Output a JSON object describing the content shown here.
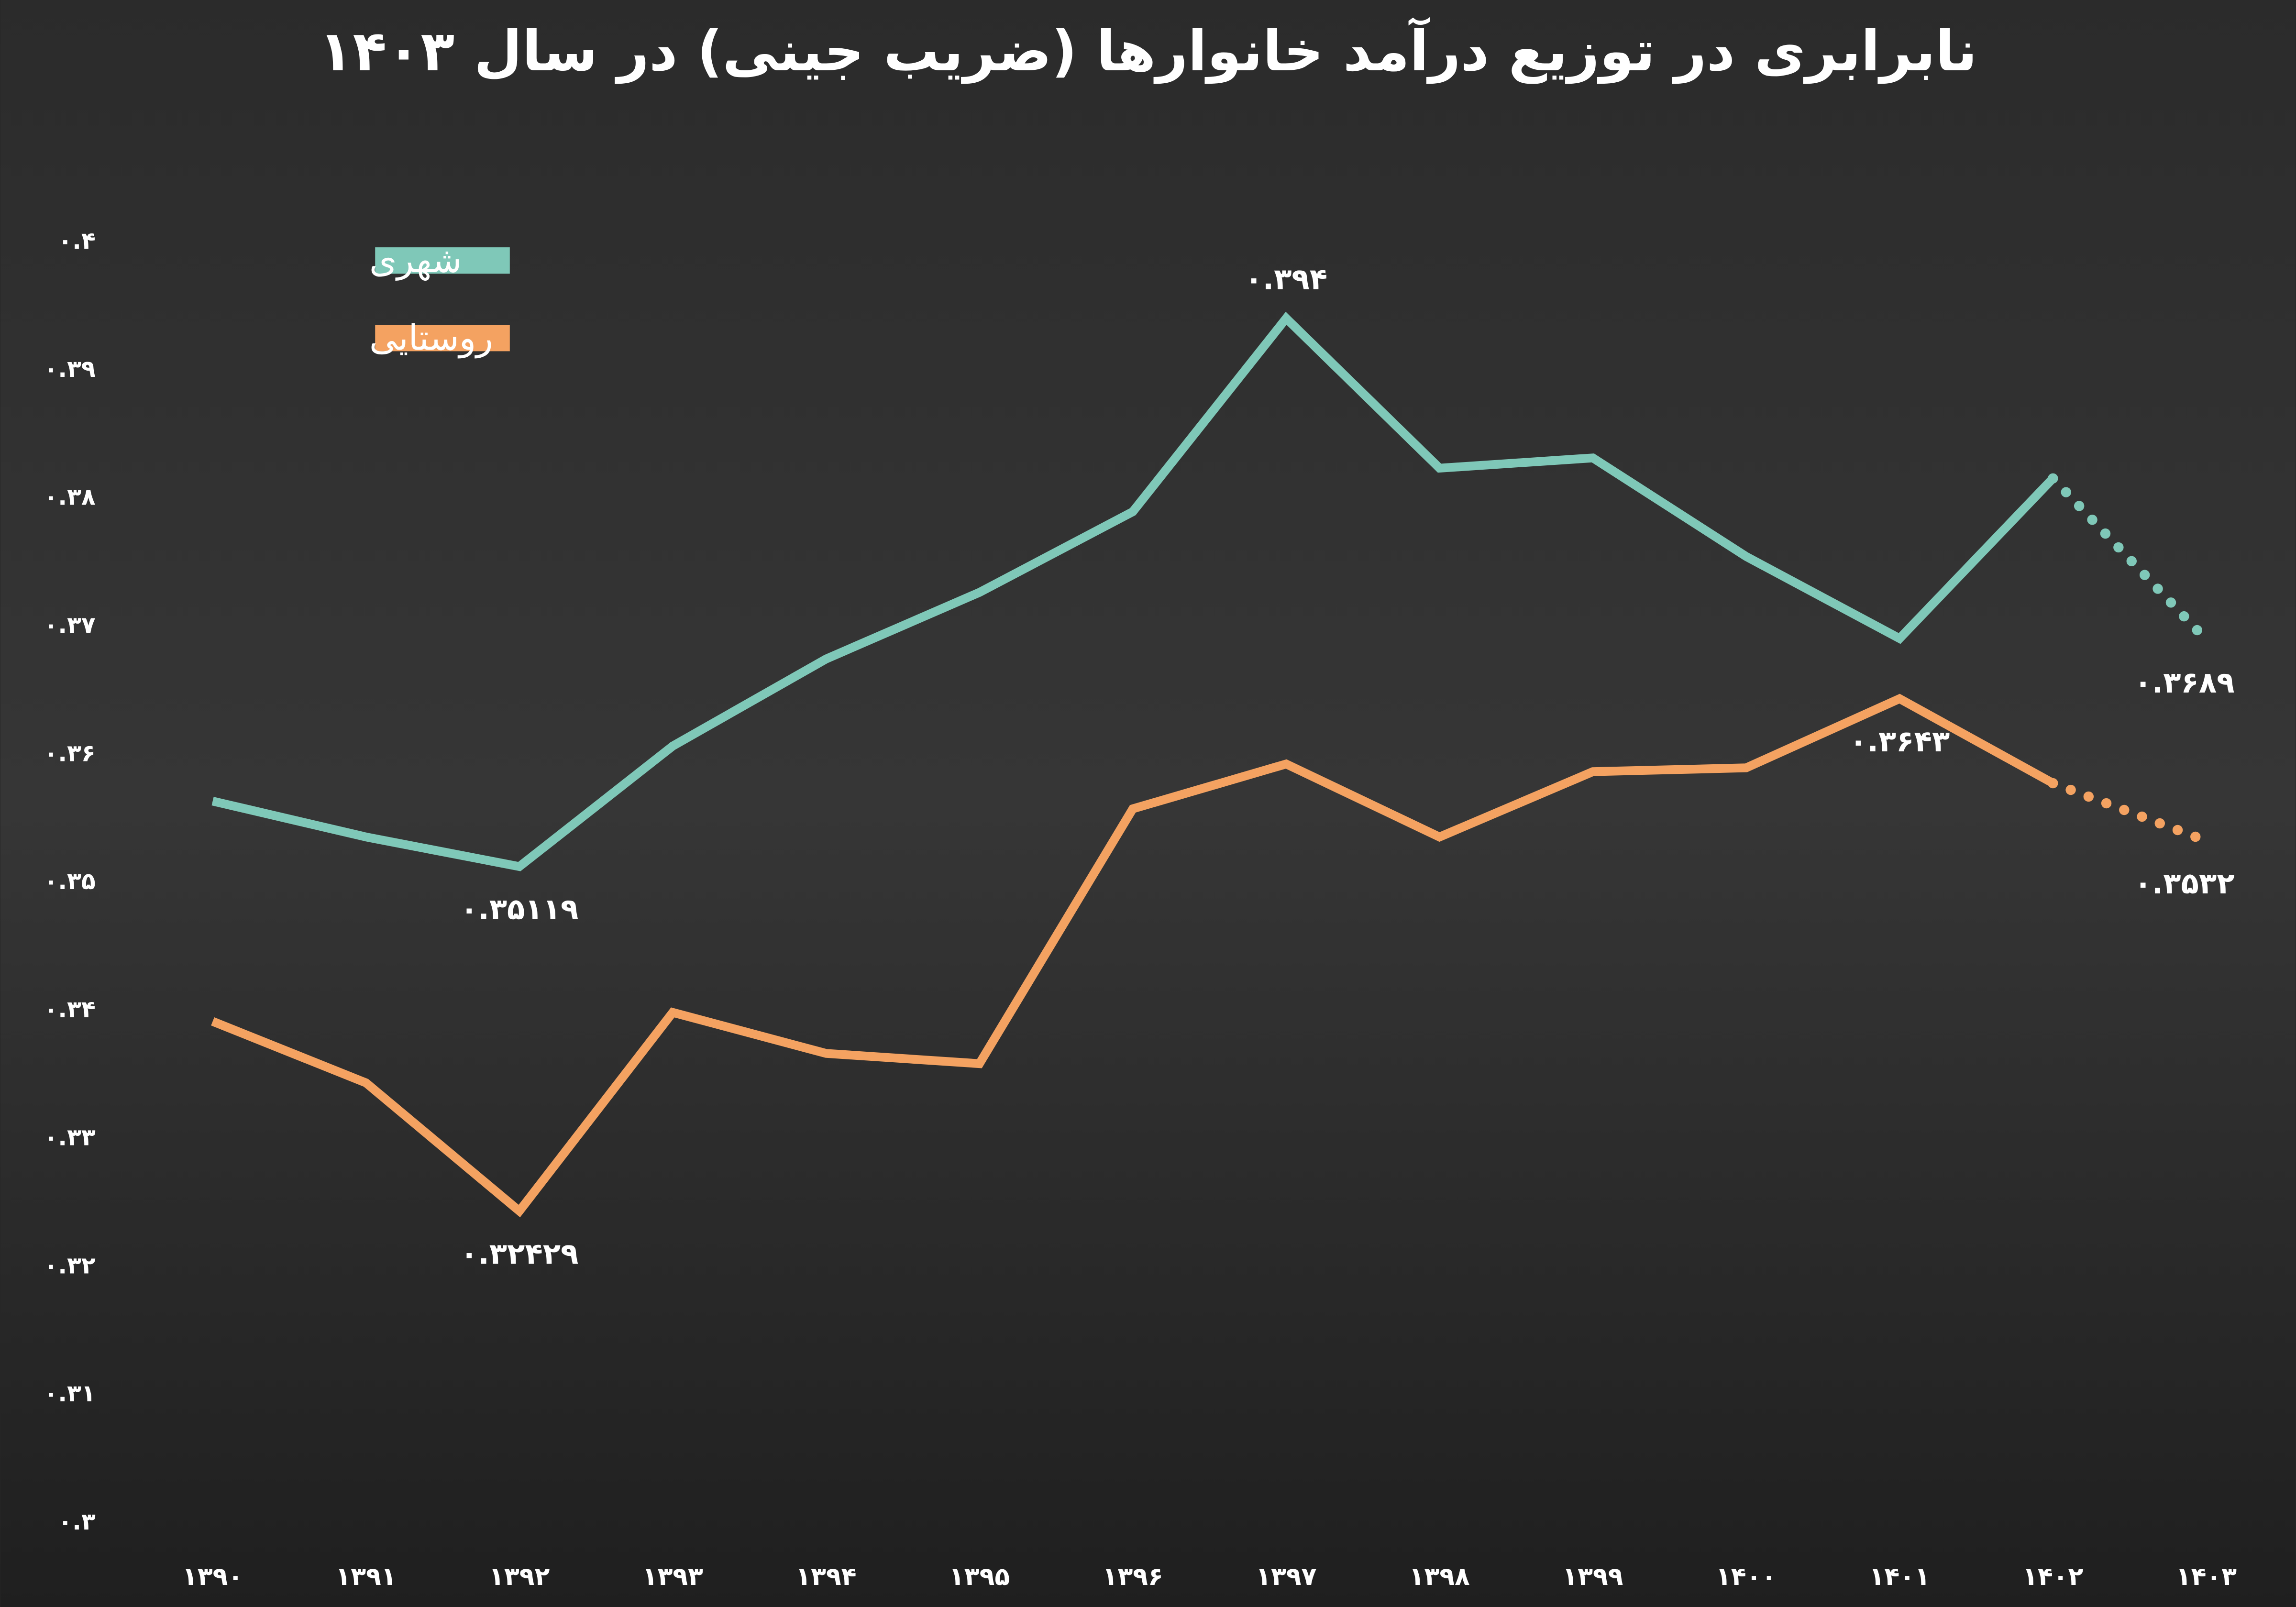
{
  "chart_data": {
    "type": "line",
    "title": "نابرابری در توزیع درآمد خانوارها (ضریب جینی) در سال ۱۴۰۳",
    "categories": [
      "۱۳۹۰",
      "۱۳۹۱",
      "۱۳۹۲",
      "۱۳۹۳",
      "۱۳۹۴",
      "۱۳۹۵",
      "۱۳۹۶",
      "۱۳۹۷",
      "۱۳۹۸",
      "۱۳۹۹",
      "۱۴۰۰",
      "۱۴۰۱",
      "۱۴۰۲",
      "۱۴۰۳"
    ],
    "series": [
      {
        "name": "شهری",
        "color": "#7fc8b8",
        "last_segment_style": "dotted",
        "values": [
          0.3563,
          0.3535,
          0.35119,
          0.3606,
          0.3674,
          0.3726,
          0.3789,
          0.394,
          0.3823,
          0.3831,
          0.3754,
          0.369,
          0.3815,
          0.3689
        ],
        "value_labels": [
          null,
          null,
          "۰.۳۵۱۱۹",
          null,
          null,
          null,
          null,
          "۰.۳۹۴",
          null,
          null,
          null,
          null,
          null,
          "۰.۳۶۸۹"
        ]
      },
      {
        "name": "روستایی",
        "color": "#f4a261",
        "last_segment_style": "dotted",
        "values": [
          0.3391,
          0.3343,
          0.32429,
          0.3398,
          0.3366,
          0.3358,
          0.3557,
          0.3592,
          0.3535,
          0.3586,
          0.3589,
          0.3643,
          0.3577,
          0.3532
        ],
        "value_labels": [
          null,
          null,
          "۰.۳۲۴۲۹",
          null,
          null,
          null,
          null,
          null,
          null,
          null,
          null,
          "۰.۳۶۴۳",
          null,
          "۰.۳۵۳۲"
        ]
      }
    ],
    "ylim": [
      0.3,
      0.4
    ],
    "yticks": [
      {
        "value": 0.3,
        "label": "۰.۳"
      },
      {
        "value": 0.31,
        "label": "۰.۳۱"
      },
      {
        "value": 0.32,
        "label": "۰.۳۲"
      },
      {
        "value": 0.33,
        "label": "۰.۳۳"
      },
      {
        "value": 0.34,
        "label": "۰.۳۴"
      },
      {
        "value": 0.35,
        "label": "۰.۳۵"
      },
      {
        "value": 0.36,
        "label": "۰.۳۶"
      },
      {
        "value": 0.37,
        "label": "۰.۳۷"
      },
      {
        "value": 0.38,
        "label": "۰.۳۸"
      },
      {
        "value": 0.39,
        "label": "۰.۳۹"
      },
      {
        "value": 0.4,
        "label": "۰.۴"
      }
    ],
    "grid": false,
    "legend": "top-left"
  }
}
